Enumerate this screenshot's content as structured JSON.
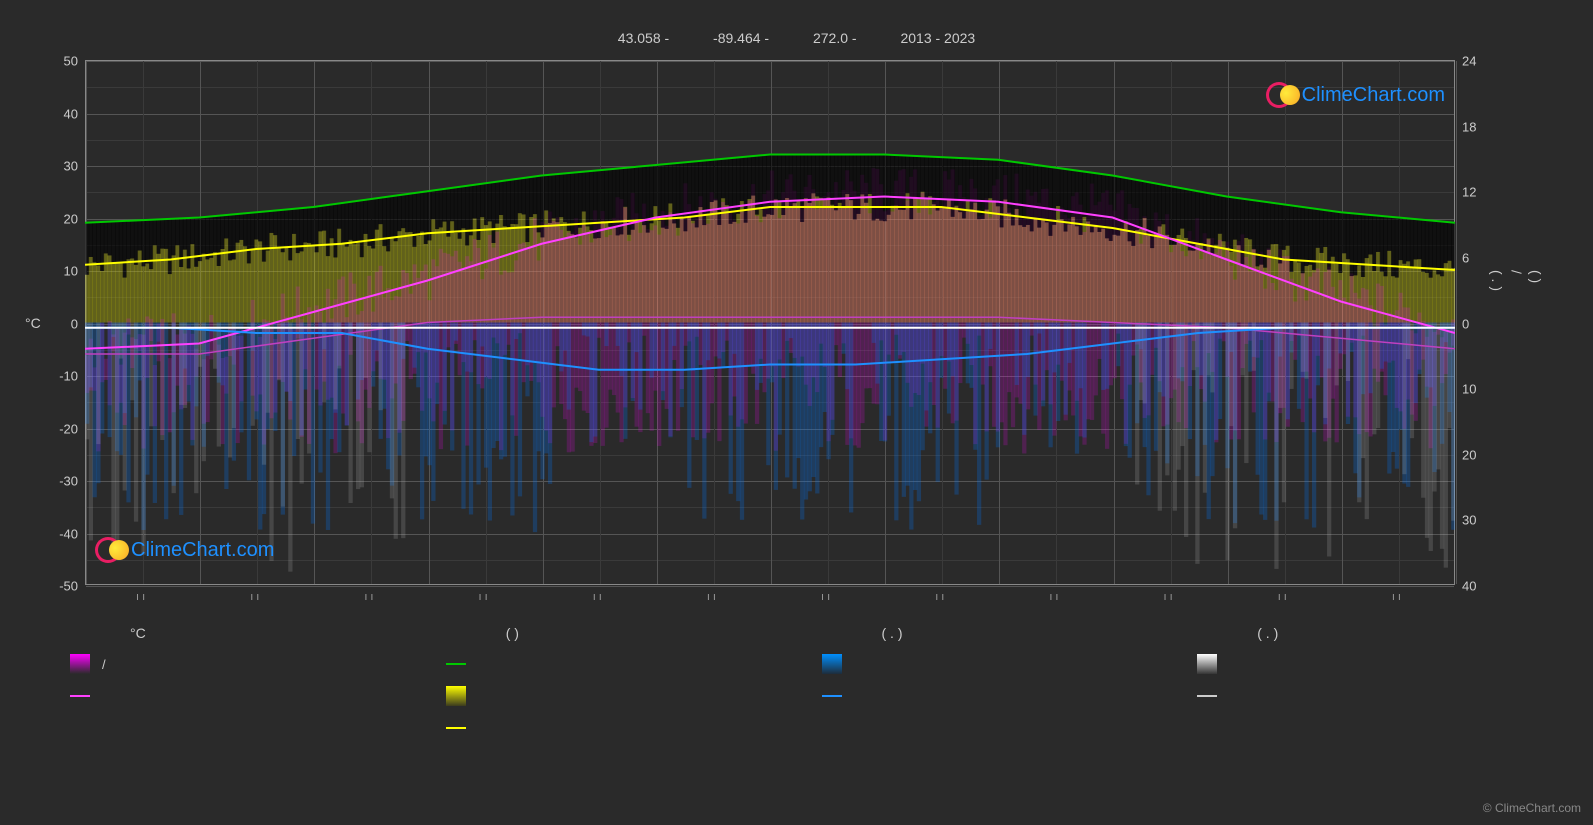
{
  "header": {
    "lat": "43.058 -",
    "lon": "-89.464 -",
    "elev": "272.0 -",
    "years": "2013 - 2023"
  },
  "brand": "ClimeChart.com",
  "copyright": "© ClimeChart.com",
  "chart": {
    "type": "climate-overlay",
    "background_color": "#2a2a2a",
    "grid_color_major": "#555555",
    "grid_color_minor": "#3a3a3a",
    "left_axis": {
      "title": "°C",
      "min": -50,
      "max": 50,
      "ticks": [
        -50,
        -40,
        -30,
        -20,
        -10,
        0,
        10,
        20,
        30,
        40,
        50
      ]
    },
    "right_axis": {
      "ticks_upper": [
        24,
        18,
        12,
        6,
        0
      ],
      "ticks_lower": [
        10,
        20,
        30,
        40
      ],
      "upper_symbol": "(  )",
      "lower_symbol_a": "/",
      "lower_symbol_b": "(  . )"
    },
    "x_tick_label": "ıı",
    "x_tick_count": 12,
    "series": {
      "temp_max": {
        "label": "",
        "color": "#00c800",
        "width": 2,
        "values": [
          19,
          20,
          22,
          25,
          28,
          30,
          32,
          32,
          31,
          28,
          24,
          21,
          19
        ]
      },
      "temp_avg_high": {
        "label": "",
        "color": "#ff40ff",
        "width": 2,
        "values": [
          -5,
          -4,
          2,
          8,
          15,
          20,
          23,
          24,
          23,
          20,
          12,
          4,
          -2
        ]
      },
      "temp_avg_low": {
        "label": "",
        "color": "#c040c0",
        "width": 1.5,
        "values": [
          -6,
          -6,
          -3,
          0,
          1,
          1,
          1,
          1,
          1,
          0,
          -1,
          -3,
          -5
        ]
      },
      "sun": {
        "label": "",
        "color": "#ffff00",
        "width": 2,
        "values": [
          11,
          12,
          14,
          15,
          17,
          18,
          19,
          20,
          22,
          22,
          22,
          20,
          18,
          15,
          12,
          11,
          10
        ]
      },
      "precip_line": {
        "label": "",
        "color": "#1e90ff",
        "width": 2,
        "values": [
          -1,
          -1,
          -2,
          -2,
          -5,
          -7,
          -9,
          -9,
          -8,
          -8,
          -7,
          -6,
          -4,
          -2,
          -1,
          -1,
          -1
        ]
      },
      "snow_line": {
        "label": "",
        "color": "#ffffff",
        "width": 2,
        "values": [
          -1,
          -1,
          -1,
          -1,
          -1,
          -1,
          -1,
          -1,
          -1,
          -1,
          -1,
          -1,
          -1
        ]
      }
    },
    "bars": {
      "temp_range": {
        "top_color": "#ff00ff",
        "bottom_fade": "rgba(255,0,255,0)",
        "mid_color": "#c8c800"
      },
      "precip": {
        "color": "#0080ff"
      },
      "snow": {
        "color": "#d0d0d0"
      }
    }
  },
  "legend": {
    "col1": {
      "header": "°C",
      "items": [
        {
          "type": "grad",
          "from": "#ff00ff",
          "to": "rgba(255,0,255,0)",
          "label": "/"
        },
        {
          "type": "line",
          "color": "#ff40ff",
          "label": ""
        }
      ]
    },
    "col2": {
      "header": "(           )",
      "items": [
        {
          "type": "line",
          "color": "#00c800",
          "label": ""
        },
        {
          "type": "grad",
          "from": "#ffff00",
          "to": "rgba(100,100,0,0.3)",
          "label": ""
        },
        {
          "type": "line",
          "color": "#ffff00",
          "label": ""
        }
      ]
    },
    "col3": {
      "header": "(   . )",
      "items": [
        {
          "type": "grad",
          "from": "#0090ff",
          "to": "rgba(0,50,100,0.3)",
          "label": ""
        },
        {
          "type": "line",
          "color": "#1e90ff",
          "label": ""
        }
      ]
    },
    "col4": {
      "header": "(   . )",
      "items": [
        {
          "type": "grad",
          "from": "#ffffff",
          "to": "rgba(80,80,80,0.3)",
          "label": ""
        },
        {
          "type": "line",
          "color": "#cccccc",
          "label": ""
        }
      ]
    }
  }
}
